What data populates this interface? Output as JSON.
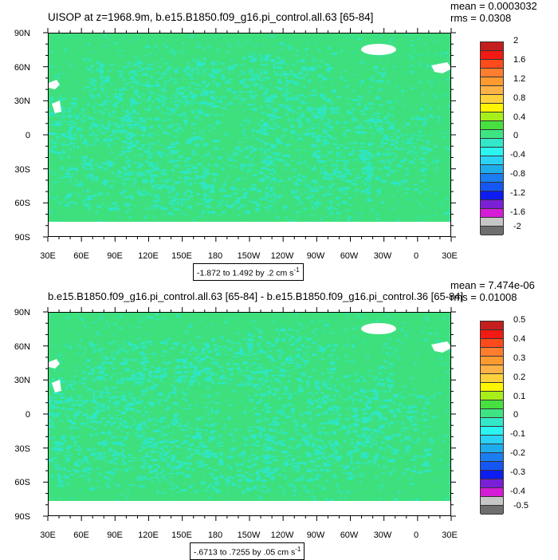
{
  "chart_data": [
    {
      "type": "heatmap",
      "title": "UISOP at z=1968.9m, b.e15.B1850.f09_g16.pi_control.all.63 [65-84]",
      "stats": {
        "mean": "mean = 0.0003032",
        "rms": "rms = 0.0308"
      },
      "range_note": {
        "text": "-1.872 to 1.492 by .2 cm s",
        "sup": "-1"
      },
      "y_ticks": [
        "90N",
        "60N",
        "30N",
        "0",
        "30S",
        "60S",
        "90S"
      ],
      "x_ticks": [
        "30E",
        "60E",
        "90E",
        "120E",
        "150E",
        "180",
        "150W",
        "120W",
        "90W",
        "60W",
        "30W",
        "0",
        "30E"
      ],
      "colorbar": {
        "labels": [
          "2",
          "1.6",
          "1.2",
          "0.8",
          "0.4",
          "0",
          "-0.4",
          "-0.8",
          "-1.2",
          "-1.6",
          "-2"
        ],
        "colors": [
          "#c41e1e",
          "#f21a12",
          "#ff4b1c",
          "#ff7d2e",
          "#ff9a30",
          "#ffb245",
          "#ffd23d",
          "#fff500",
          "#a7ef1b",
          "#46e040",
          "#3de582",
          "#33e8c8",
          "#2bf5f0",
          "#2ad3f3",
          "#1eadec",
          "#1a7df2",
          "#1457f5",
          "#0d1cf0",
          "#7a1fd6",
          "#d61bd6",
          "#c6c6c6",
          "#6e6e6e"
        ]
      },
      "field_colors": {
        "background": "#3ee07e",
        "pattern": "#2ee6c6",
        "land_mask": "#ffffff"
      },
      "xlim": [
        30,
        390
      ],
      "ylim": [
        -90,
        90
      ]
    },
    {
      "type": "heatmap",
      "title": "b.e15.B1850.f09_g16.pi_control.all.63 [65-84] - b.e15.B1850.f09_g16.pi_control.36 [65-84]",
      "stats": {
        "mean": "mean = 7.474e-06",
        "rms": "rms = 0.01008"
      },
      "range_note": {
        "text": "-.6713 to .7255 by .05 cm s",
        "sup": "-1"
      },
      "y_ticks": [
        "90N",
        "60N",
        "30N",
        "0",
        "30S",
        "60S",
        "90S"
      ],
      "x_ticks": [
        "30E",
        "60E",
        "90E",
        "120E",
        "150E",
        "180",
        "150W",
        "120W",
        "90W",
        "60W",
        "30W",
        "0",
        "30E"
      ],
      "colorbar": {
        "labels": [
          "0.5",
          "0.4",
          "0.3",
          "0.2",
          "0.1",
          "0",
          "-0.1",
          "-0.2",
          "-0.3",
          "-0.4",
          "-0.5"
        ],
        "colors": [
          "#c41e1e",
          "#f21a12",
          "#ff4b1c",
          "#ff7d2e",
          "#ff9a30",
          "#ffb245",
          "#ffd23d",
          "#fff500",
          "#a7ef1b",
          "#46e040",
          "#3de582",
          "#33e8c8",
          "#2bf5f0",
          "#2ad3f3",
          "#1eadec",
          "#1a7df2",
          "#1457f5",
          "#0d1cf0",
          "#7a1fd6",
          "#d61bd6",
          "#c6c6c6",
          "#6e6e6e"
        ]
      },
      "field_colors": {
        "background": "#3ee07e",
        "pattern": "#2ee6c6",
        "land_mask": "#ffffff"
      },
      "xlim": [
        30,
        390
      ],
      "ylim": [
        -90,
        90
      ]
    }
  ]
}
